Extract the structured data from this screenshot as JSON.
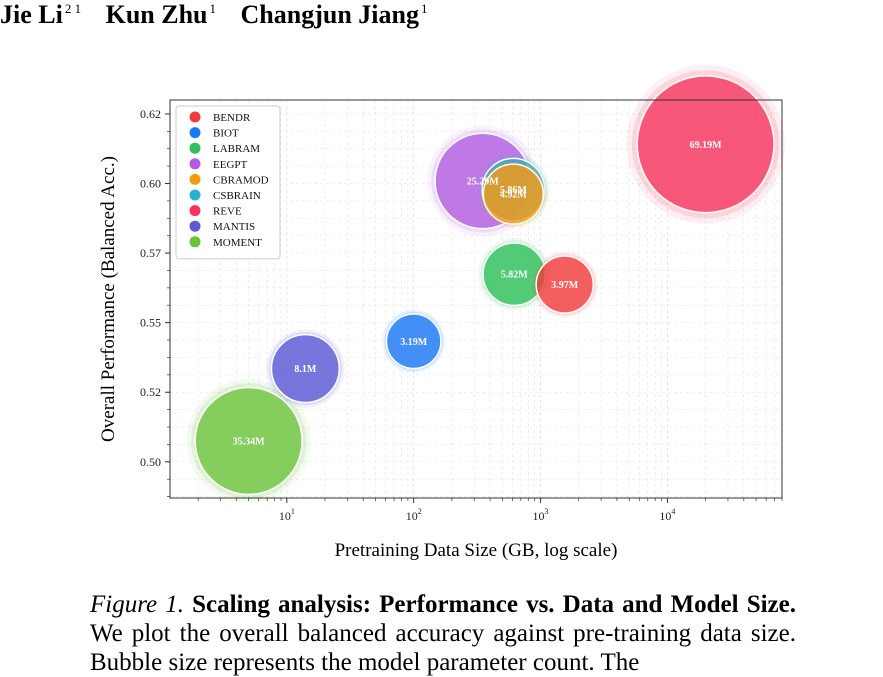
{
  "authors": [
    {
      "name": "Jie Li",
      "affil": "2 1"
    },
    {
      "name": "Kun Zhu",
      "affil": "1"
    },
    {
      "name": "Changjun Jiang",
      "affil": "1"
    }
  ],
  "caption": {
    "label": "Figure 1.",
    "title": "Scaling analysis: Performance vs. Data and Model Size.",
    "text": "We plot the overall balanced accuracy against pre-training data size. Bubble size represents the model parameter count. The"
  },
  "chart_data": {
    "type": "scatter",
    "xlabel": "Pretraining Data Size (GB, log scale)",
    "ylabel": "Overall Performance (Balanced Acc.)",
    "xscale": "log",
    "xlim": [
      1.2,
      80000
    ],
    "ylim": [
      0.487,
      0.63
    ],
    "x_ticks": [
      10,
      100,
      1000,
      10000
    ],
    "x_tick_labels": [
      {
        "base": "10",
        "exp": "1"
      },
      {
        "base": "10",
        "exp": "2"
      },
      {
        "base": "10",
        "exp": "3"
      },
      {
        "base": "10",
        "exp": "4"
      }
    ],
    "y_ticks": [
      0.5,
      0.525,
      0.55,
      0.575,
      0.6,
      0.625
    ],
    "y_tick_labels": [
      "0.50",
      "0.52",
      "0.55",
      "0.57",
      "0.60",
      "0.62"
    ],
    "grid": true,
    "legend_position": "top-left",
    "series": [
      {
        "name": "BENDR",
        "color": "#f03c3c",
        "x": 1550,
        "y": 0.5637,
        "params_m": 3.97,
        "label": "3.97M"
      },
      {
        "name": "BIOT",
        "color": "#1a78f2",
        "x": 100,
        "y": 0.5433,
        "params_m": 3.19,
        "label": "3.19M"
      },
      {
        "name": "LABRAM",
        "color": "#2ec05a",
        "x": 620,
        "y": 0.5674,
        "params_m": 5.82,
        "label": "5.82M"
      },
      {
        "name": "EEGPT",
        "color": "#b25de0",
        "x": 350,
        "y": 0.6009,
        "params_m": 25.29,
        "label": "25.29M"
      },
      {
        "name": "CBRAMOD",
        "color": "#f59a12",
        "x": 610,
        "y": 0.5962,
        "params_m": 4.92,
        "label": "4.92M"
      },
      {
        "name": "CSBRAIN",
        "color": "#2ab0cf",
        "x": 610,
        "y": 0.5978,
        "params_m": 5.86,
        "label": "5.86M"
      },
      {
        "name": "REVE",
        "color": "#f5335e",
        "x": 20000,
        "y": 0.6141,
        "params_m": 69.19,
        "label": "69.19M"
      },
      {
        "name": "MANTIS",
        "color": "#5c58d6",
        "x": 14,
        "y": 0.5335,
        "params_m": 8.1,
        "label": "8.1M"
      },
      {
        "name": "MOMENT",
        "color": "#6cc43c",
        "x": 5,
        "y": 0.5075,
        "params_m": 35.34,
        "label": "35.34M"
      }
    ]
  }
}
